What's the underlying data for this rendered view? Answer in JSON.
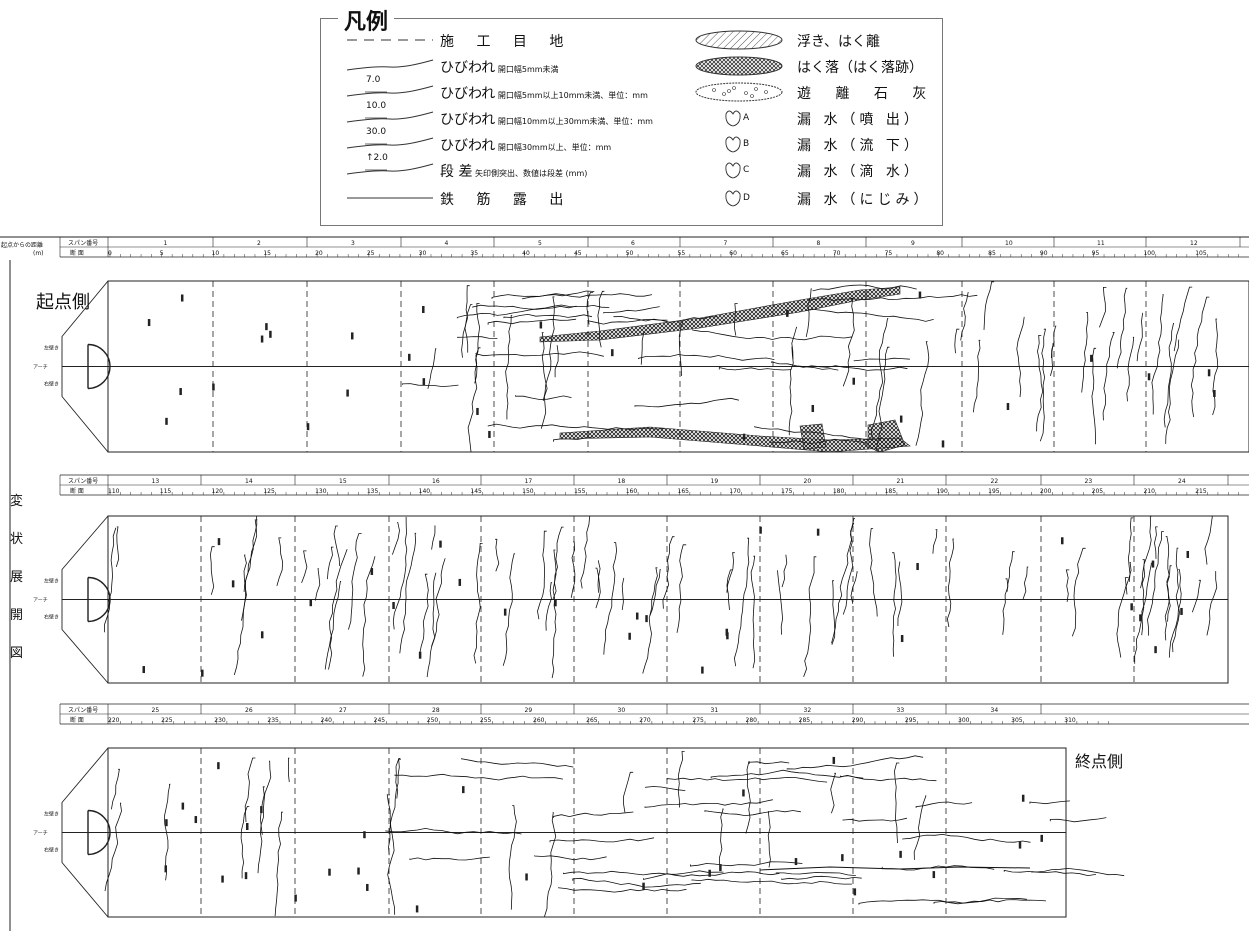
{
  "legend": {
    "title": "凡例",
    "left_items": [
      {
        "main": "施 工 目 地",
        "note": ""
      },
      {
        "main": "ひびわれ",
        "note": "開口幅5mm未満"
      },
      {
        "main": "ひびわれ",
        "note": "開口幅5mm以上10mm未満、単位：mm",
        "value": "7.0"
      },
      {
        "main": "ひびわれ",
        "note": "開口幅10mm以上30mm未満、単位：mm",
        "value": "10.0"
      },
      {
        "main": "ひびわれ",
        "note": "開口幅30mm以上、単位：mm",
        "value": "30.0"
      },
      {
        "main": "段 差",
        "note": "矢印側突出、数値は段差 (mm)",
        "value": "↑2.0"
      },
      {
        "main": "鉄 筋 露 出",
        "note": ""
      }
    ],
    "right_items": [
      {
        "main": "浮き、はく離",
        "sym": ""
      },
      {
        "main": "はく落（はく落跡）",
        "sym": ""
      },
      {
        "main": "遊 離 石 灰",
        "sym": ""
      },
      {
        "main": "漏 水（噴 出）",
        "sym": "A"
      },
      {
        "main": "漏 水（流 下）",
        "sym": "B"
      },
      {
        "main": "漏 水（滴 水）",
        "sym": "C"
      },
      {
        "main": "漏 水（にじみ）",
        "sym": "D"
      }
    ]
  },
  "header": {
    "dist_label": "起点からの距離",
    "dist_unit": "(m)",
    "span_label": "スパン番号",
    "section_label": "断 面"
  },
  "side_title": "変状展開図",
  "start_label": "起点側",
  "end_label": "終点側",
  "row_labels": {
    "upper": "左壁き",
    "arch": "アーチ",
    "lower": "右壁き"
  },
  "strips": [
    {
      "spans": [
        "1",
        "2",
        "3",
        "4",
        "5",
        "6",
        "7",
        "8",
        "9",
        "10",
        "11",
        "12"
      ],
      "ticks": [
        "0",
        "5",
        "10",
        "15",
        "20",
        "25",
        "30",
        "35",
        "40",
        "45",
        "50",
        "55",
        "60",
        "65",
        "70",
        "75",
        "80",
        "85",
        "90",
        "95",
        "100",
        "105"
      ]
    },
    {
      "spans": [
        "13",
        "14",
        "15",
        "16",
        "17",
        "18",
        "19",
        "20",
        "21",
        "22",
        "23",
        "24"
      ],
      "ticks": [
        "110",
        "115",
        "120",
        "125",
        "130",
        "135",
        "140",
        "145",
        "150",
        "155",
        "160",
        "165",
        "170",
        "175",
        "180",
        "185",
        "190",
        "195",
        "200",
        "205",
        "210",
        "215"
      ]
    },
    {
      "spans": [
        "25",
        "26",
        "27",
        "28",
        "29",
        "30",
        "31",
        "32",
        "33",
        "34"
      ],
      "ticks": [
        "220",
        "225",
        "230",
        "235",
        "240",
        "245",
        "250",
        "255",
        "260",
        "265",
        "270",
        "275",
        "280",
        "285",
        "290",
        "295",
        "300",
        "305",
        "310"
      ]
    }
  ]
}
